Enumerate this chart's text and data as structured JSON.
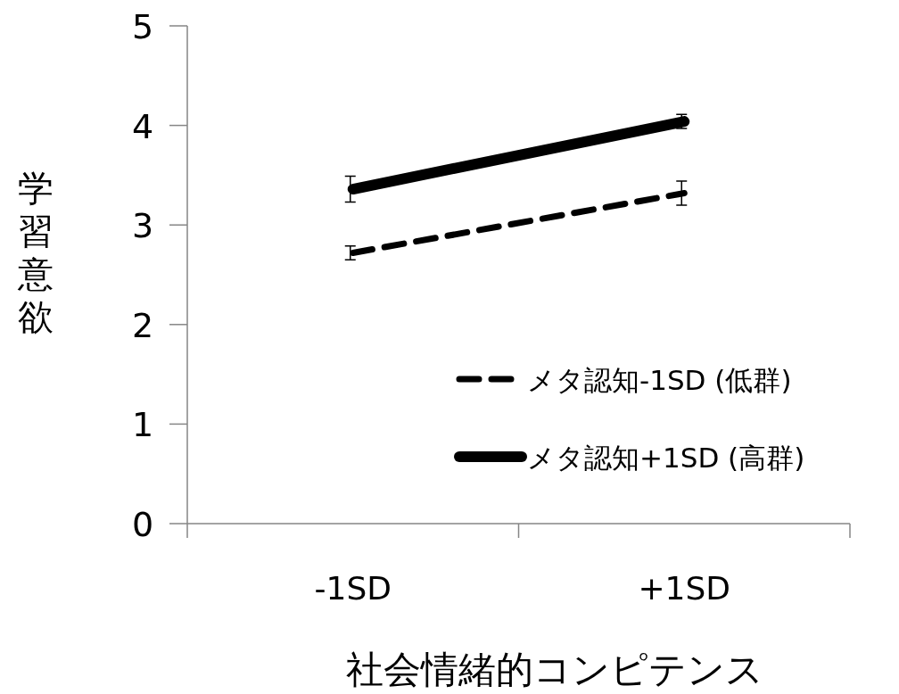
{
  "chart_data": {
    "type": "line",
    "xlabel": "社会情緒的コンピテンス",
    "ylabel": "学習意欲",
    "categories": [
      "-1SD",
      "+1SD"
    ],
    "series": [
      {
        "name": "メタ認知-1SD (低群)",
        "color": "#000000",
        "line_style": "dashed",
        "values": [
          2.72,
          3.32
        ],
        "errors": [
          0.07,
          0.12
        ]
      },
      {
        "name": "メタ認知+1SD (高群)",
        "color": "#000000",
        "line_style": "solid",
        "values": [
          3.36,
          4.04
        ],
        "errors": [
          0.13,
          0.07
        ]
      }
    ],
    "ylim": [
      0,
      5
    ],
    "yticks": [
      0,
      1,
      2,
      3,
      4,
      5
    ],
    "legend": "bottom right"
  }
}
